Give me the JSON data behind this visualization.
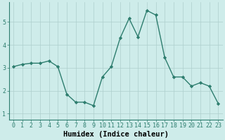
{
  "x": [
    0,
    1,
    2,
    3,
    4,
    5,
    6,
    7,
    8,
    9,
    10,
    11,
    12,
    13,
    14,
    15,
    16,
    17,
    18,
    19,
    20,
    21,
    22,
    23
  ],
  "y": [
    3.05,
    3.15,
    3.2,
    3.2,
    3.3,
    3.05,
    1.85,
    1.5,
    1.5,
    1.35,
    2.6,
    3.05,
    4.3,
    5.15,
    4.35,
    5.5,
    5.3,
    3.45,
    2.6,
    2.6,
    2.2,
    2.35,
    2.2,
    1.45
  ],
  "xlabel": "Humidex (Indice chaleur)",
  "xlim": [
    -0.5,
    23.5
  ],
  "ylim": [
    0.75,
    5.85
  ],
  "yticks": [
    1,
    2,
    3,
    4,
    5
  ],
  "xticks": [
    0,
    1,
    2,
    3,
    4,
    5,
    6,
    7,
    8,
    9,
    10,
    11,
    12,
    13,
    14,
    15,
    16,
    17,
    18,
    19,
    20,
    21,
    22,
    23
  ],
  "line_color": "#2d7d6e",
  "marker": "D",
  "marker_size": 2.2,
  "bg_color": "#ceecea",
  "grid_color": "#aecfcd",
  "xlabel_fontsize": 7.5,
  "tick_fontsize": 6.0,
  "line_width": 1.0
}
